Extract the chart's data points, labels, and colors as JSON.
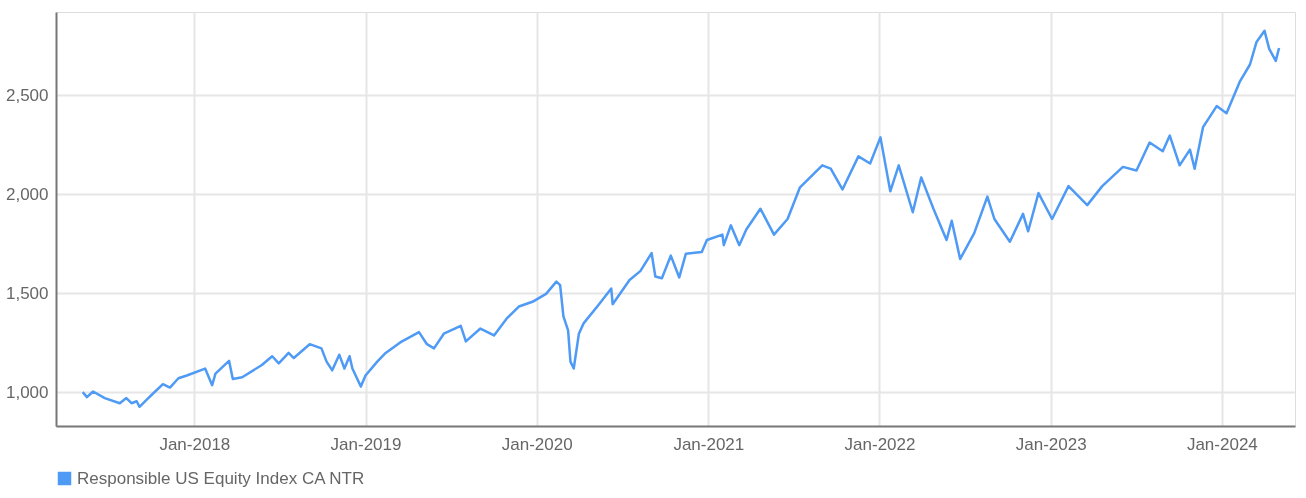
{
  "chart_data": {
    "type": "line",
    "xlim": [
      "2017-03-12",
      "2024-06-05"
    ],
    "xticks": [
      {
        "value": "2018-01-01",
        "label": "Jan-2018"
      },
      {
        "value": "2019-01-01",
        "label": "Jan-2019"
      },
      {
        "value": "2020-01-01",
        "label": "Jan-2020"
      },
      {
        "value": "2021-01-01",
        "label": "Jan-2021"
      },
      {
        "value": "2022-01-01",
        "label": "Jan-2022"
      },
      {
        "value": "2023-01-01",
        "label": "Jan-2023"
      },
      {
        "value": "2024-01-01",
        "label": "Jan-2024"
      }
    ],
    "ylim": [
      830,
      2920
    ],
    "yticks": [
      {
        "value": 1000,
        "label": "1,000"
      },
      {
        "value": 1500,
        "label": "1,500"
      },
      {
        "value": 2000,
        "label": "2,000"
      },
      {
        "value": 2500,
        "label": "2,500"
      }
    ],
    "grid": true,
    "legend": "bottom",
    "marker": "none",
    "line_style": "solid",
    "series": [
      {
        "name": "Responsible US Equity Index CA NTR",
        "color": "#4e9af5",
        "x": [
          "2017-05-08",
          "2017-05-17",
          "2017-05-30",
          "2017-06-24",
          "2017-07-26",
          "2017-08-09",
          "2017-08-20",
          "2017-08-31",
          "2017-09-06",
          "2017-09-21",
          "2017-10-05",
          "2017-10-26",
          "2017-11-10",
          "2017-11-28",
          "2017-12-16",
          "2018-01-24",
          "2018-02-08",
          "2018-02-15",
          "2018-03-16",
          "2018-03-24",
          "2018-04-13",
          "2018-05-25",
          "2018-06-16",
          "2018-06-30",
          "2018-07-21",
          "2018-08-01",
          "2018-09-04",
          "2018-09-29",
          "2018-10-10",
          "2018-10-22",
          "2018-11-06",
          "2018-11-17",
          "2018-11-28",
          "2018-12-04",
          "2018-12-22",
          "2019-01-01",
          "2019-01-26",
          "2019-02-13",
          "2019-03-16",
          "2019-04-25",
          "2019-05-12",
          "2019-05-27",
          "2019-06-17",
          "2019-07-23",
          "2019-08-03",
          "2019-09-03",
          "2019-10-02",
          "2019-10-30",
          "2019-11-24",
          "2019-12-23",
          "2020-01-21",
          "2020-02-12",
          "2020-02-20",
          "2020-02-27",
          "2020-03-08",
          "2020-03-13",
          "2020-03-20",
          "2020-03-31",
          "2020-04-10",
          "2020-05-13",
          "2020-06-08",
          "2020-06-11",
          "2020-07-17",
          "2020-08-09",
          "2020-09-02",
          "2020-09-10",
          "2020-09-24",
          "2020-10-13",
          "2020-10-31",
          "2020-11-14",
          "2020-12-18",
          "2020-12-29",
          "2021-01-31",
          "2021-02-03",
          "2021-02-18",
          "2021-03-08",
          "2021-03-23",
          "2021-04-22",
          "2021-05-21",
          "2021-06-19",
          "2021-07-15",
          "2021-09-01",
          "2021-09-19",
          "2021-10-14",
          "2021-11-17",
          "2021-12-12",
          "2022-01-03",
          "2022-01-24",
          "2022-02-11",
          "2022-03-13",
          "2022-03-31",
          "2022-04-26",
          "2022-05-24",
          "2022-06-04",
          "2022-06-22",
          "2022-07-22",
          "2022-08-19",
          "2022-09-03",
          "2022-10-06",
          "2022-11-03",
          "2022-11-14",
          "2022-12-06",
          "2023-01-04",
          "2023-02-08",
          "2023-03-20",
          "2023-04-21",
          "2023-06-04",
          "2023-07-03",
          "2023-07-31",
          "2023-08-28",
          "2023-09-12",
          "2023-10-03",
          "2023-10-25",
          "2023-11-04",
          "2023-11-22",
          "2023-12-21",
          "2024-01-11",
          "2024-02-08",
          "2024-03-01",
          "2024-03-15",
          "2024-04-01",
          "2024-04-11",
          "2024-04-25",
          "2024-05-02"
        ],
        "values": [
          1001,
          976,
          1004,
          971,
          945,
          971,
          945,
          955,
          927,
          962,
          994,
          1041,
          1024,
          1071,
          1085,
          1120,
          1036,
          1094,
          1159,
          1067,
          1076,
          1138,
          1182,
          1146,
          1199,
          1173,
          1243,
          1222,
          1155,
          1111,
          1190,
          1120,
          1182,
          1120,
          1029,
          1085,
          1155,
          1199,
          1252,
          1304,
          1243,
          1222,
          1296,
          1336,
          1257,
          1322,
          1287,
          1375,
          1433,
          1457,
          1497,
          1559,
          1541,
          1383,
          1313,
          1155,
          1120,
          1296,
          1348,
          1445,
          1524,
          1445,
          1567,
          1612,
          1703,
          1585,
          1576,
          1690,
          1580,
          1699,
          1708,
          1769,
          1796,
          1743,
          1843,
          1743,
          1822,
          1927,
          1796,
          1875,
          2033,
          2146,
          2129,
          2024,
          2191,
          2155,
          2287,
          2015,
          2146,
          1909,
          2085,
          1927,
          1769,
          1866,
          1673,
          1804,
          1988,
          1875,
          1760,
          1901,
          1813,
          2006,
          1875,
          2041,
          1945,
          2041,
          2138,
          2120,
          2261,
          2217,
          2296,
          2146,
          2225,
          2129,
          2339,
          2445,
          2409,
          2567,
          2655,
          2769,
          2825,
          2734,
          2673,
          2738
        ]
      }
    ]
  }
}
